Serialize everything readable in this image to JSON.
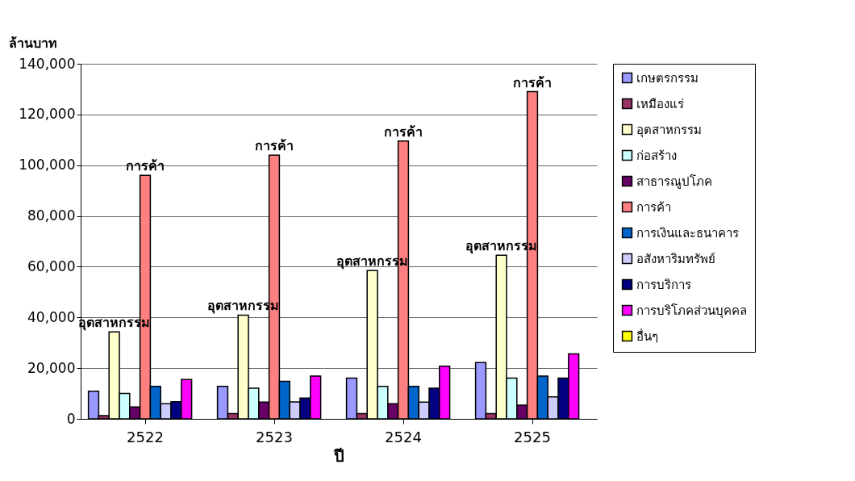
{
  "chart_data": {
    "type": "bar",
    "ylabel": "ล้านบาท",
    "xlabel": "ปี",
    "categories": [
      "2522",
      "2523",
      "2524",
      "2525"
    ],
    "series": [
      {
        "name": "เกษตรกรรม",
        "color": "#9999ff",
        "values": [
          10900,
          12800,
          16100,
          22200
        ]
      },
      {
        "name": "เหมืองแร่",
        "color": "#993366",
        "values": [
          1300,
          2100,
          2100,
          2100
        ]
      },
      {
        "name": "อุตสาหกรรม",
        "color": "#ffffcc",
        "values": [
          34300,
          40900,
          58500,
          64500
        ],
        "value_labels": [
          "อุตสาหกรรม",
          "อุตสาหกรรม",
          "อุตสาหกรรม",
          "อุตสาหกรรม"
        ]
      },
      {
        "name": "ก่อสร้าง",
        "color": "#ccffff",
        "values": [
          10000,
          12100,
          12800,
          16100
        ]
      },
      {
        "name": "สาธารณูปโภค",
        "color": "#660066",
        "values": [
          4700,
          6600,
          6000,
          5400
        ]
      },
      {
        "name": "การค้า",
        "color": "#ff8080",
        "values": [
          96000,
          104000,
          109500,
          129000
        ],
        "value_labels": [
          "การค้า",
          "การค้า",
          "การค้า",
          "การค้า"
        ]
      },
      {
        "name": "การเงินและธนาคาร",
        "color": "#0066cc",
        "values": [
          12800,
          14800,
          12800,
          16900
        ]
      },
      {
        "name": "อสังหาริมทรัพย์",
        "color": "#ccccff",
        "values": [
          6000,
          6700,
          6600,
          8700
        ]
      },
      {
        "name": "การบริการ",
        "color": "#000080",
        "values": [
          6800,
          8200,
          12100,
          16100
        ]
      },
      {
        "name": "การบริโภคส่วนบุคคล",
        "color": "#ff00ff",
        "values": [
          15500,
          16900,
          20800,
          25600
        ]
      },
      {
        "name": "อื่นๆ",
        "color": "#ffff00",
        "values": [
          null,
          null,
          null,
          null
        ]
      }
    ],
    "ylim": [
      0,
      140000
    ],
    "yticks": [
      0,
      {
        "value": 20000,
        "label": "20,000"
      },
      {
        "value": 40000,
        "label": "40,000"
      },
      {
        "value": 60000,
        "label": "60,000"
      },
      {
        "value": 80000,
        "label": "80,000"
      },
      {
        "value": 100000,
        "label": "100,000"
      },
      {
        "value": 120000,
        "label": "120,000"
      },
      {
        "value": 140000,
        "label": "140,000"
      }
    ],
    "grid": "y",
    "legend": "right"
  }
}
